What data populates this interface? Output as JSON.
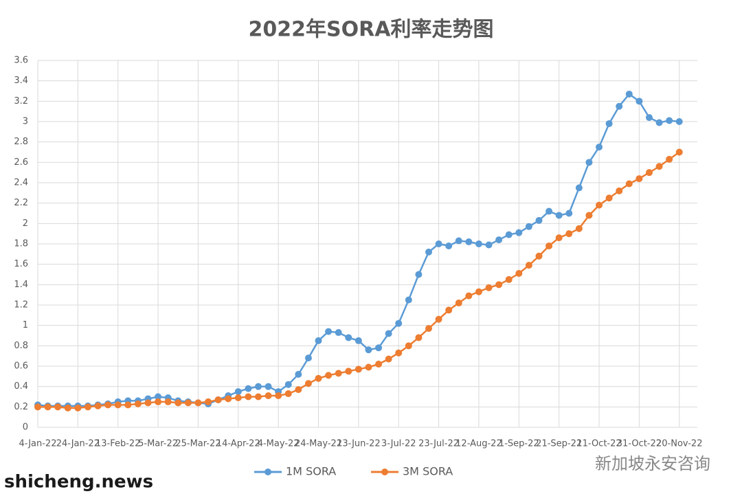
{
  "chart_data": {
    "type": "line",
    "title": "2022年SORA利率走势图",
    "x": [
      "4-Jan-22",
      "9-Jan-22",
      "14-Jan-22",
      "19-Jan-22",
      "24-Jan-22",
      "29-Jan-22",
      "3-Feb-22",
      "8-Feb-22",
      "13-Feb-22",
      "18-Feb-22",
      "23-Feb-22",
      "28-Feb-22",
      "5-Mar-22",
      "10-Mar-22",
      "15-Mar-22",
      "20-Mar-22",
      "25-Mar-22",
      "30-Mar-22",
      "4-Apr-22",
      "9-Apr-22",
      "14-Apr-22",
      "19-Apr-22",
      "24-Apr-22",
      "29-Apr-22",
      "4-May-22",
      "9-May-22",
      "14-May-22",
      "19-May-22",
      "24-May-22",
      "29-May-22",
      "3-Jun-22",
      "8-Jun-22",
      "13-Jun-22",
      "18-Jun-22",
      "23-Jun-22",
      "28-Jun-22",
      "3-Jul-22",
      "8-Jul-22",
      "13-Jul-22",
      "18-Jul-22",
      "23-Jul-22",
      "28-Jul-22",
      "2-Aug-22",
      "7-Aug-22",
      "12-Aug-22",
      "17-Aug-22",
      "22-Aug-22",
      "27-Aug-22",
      "1-Sep-22",
      "6-Sep-22",
      "11-Sep-22",
      "16-Sep-22",
      "21-Sep-22",
      "26-Sep-22",
      "1-Oct-22",
      "6-Oct-22",
      "11-Oct-22",
      "16-Oct-22",
      "21-Oct-22",
      "26-Oct-22",
      "31-Oct-22",
      "5-Nov-22",
      "10-Nov-22",
      "15-Nov-22",
      "20-Nov-22"
    ],
    "series": [
      {
        "name": "1M SORA",
        "color": "#5b9bd5",
        "values": [
          0.22,
          0.21,
          0.21,
          0.21,
          0.21,
          0.21,
          0.22,
          0.23,
          0.25,
          0.26,
          0.26,
          0.28,
          0.3,
          0.29,
          0.26,
          0.25,
          0.24,
          0.23,
          0.27,
          0.31,
          0.35,
          0.38,
          0.4,
          0.4,
          0.35,
          0.42,
          0.52,
          0.68,
          0.85,
          0.94,
          0.93,
          0.88,
          0.85,
          0.76,
          0.78,
          0.92,
          1.02,
          1.25,
          1.5,
          1.72,
          1.8,
          1.78,
          1.83,
          1.82,
          1.8,
          1.79,
          1.84,
          1.89,
          1.91,
          1.97,
          2.03,
          2.12,
          2.08,
          2.1,
          2.35,
          2.6,
          2.75,
          2.98,
          3.15,
          3.27,
          3.2,
          3.04,
          2.99,
          3.01,
          3.0
        ]
      },
      {
        "name": "3M SORA",
        "color": "#ed7d31",
        "values": [
          0.2,
          0.2,
          0.2,
          0.19,
          0.19,
          0.2,
          0.21,
          0.22,
          0.22,
          0.22,
          0.23,
          0.24,
          0.25,
          0.25,
          0.24,
          0.24,
          0.24,
          0.25,
          0.27,
          0.28,
          0.29,
          0.3,
          0.3,
          0.31,
          0.31,
          0.33,
          0.37,
          0.43,
          0.48,
          0.51,
          0.53,
          0.55,
          0.57,
          0.59,
          0.62,
          0.67,
          0.73,
          0.8,
          0.88,
          0.97,
          1.06,
          1.15,
          1.22,
          1.29,
          1.33,
          1.37,
          1.4,
          1.45,
          1.51,
          1.59,
          1.68,
          1.78,
          1.86,
          1.9,
          1.95,
          2.08,
          2.18,
          2.25,
          2.32,
          2.39,
          2.44,
          2.5,
          2.56,
          2.63,
          2.7
        ]
      }
    ],
    "xlim": [
      "4-Jan-22",
      "29-Nov-22"
    ],
    "xticks": [
      "4-Jan-22",
      "24-Jan-22",
      "13-Feb-22",
      "5-Mar-22",
      "25-Mar-22",
      "14-Apr-22",
      "4-May-22",
      "24-May-22",
      "13-Jun-22",
      "3-Jul-22",
      "23-Jul-22",
      "12-Aug-22",
      "1-Sep-22",
      "21-Sep-22",
      "11-Oct-22",
      "31-Oct-22",
      "20-Nov-22"
    ],
    "ylim": [
      0,
      3.6
    ],
    "yticks": [
      0,
      0.2,
      0.4,
      0.6,
      0.8,
      1,
      1.2,
      1.4,
      1.6,
      1.8,
      2,
      2.2,
      2.4,
      2.6,
      2.8,
      3,
      3.2,
      3.4,
      3.6
    ],
    "grid": true,
    "legend": "bottom",
    "watermarks": [
      "新加坡永安咨询",
      "shicheng.news"
    ]
  }
}
